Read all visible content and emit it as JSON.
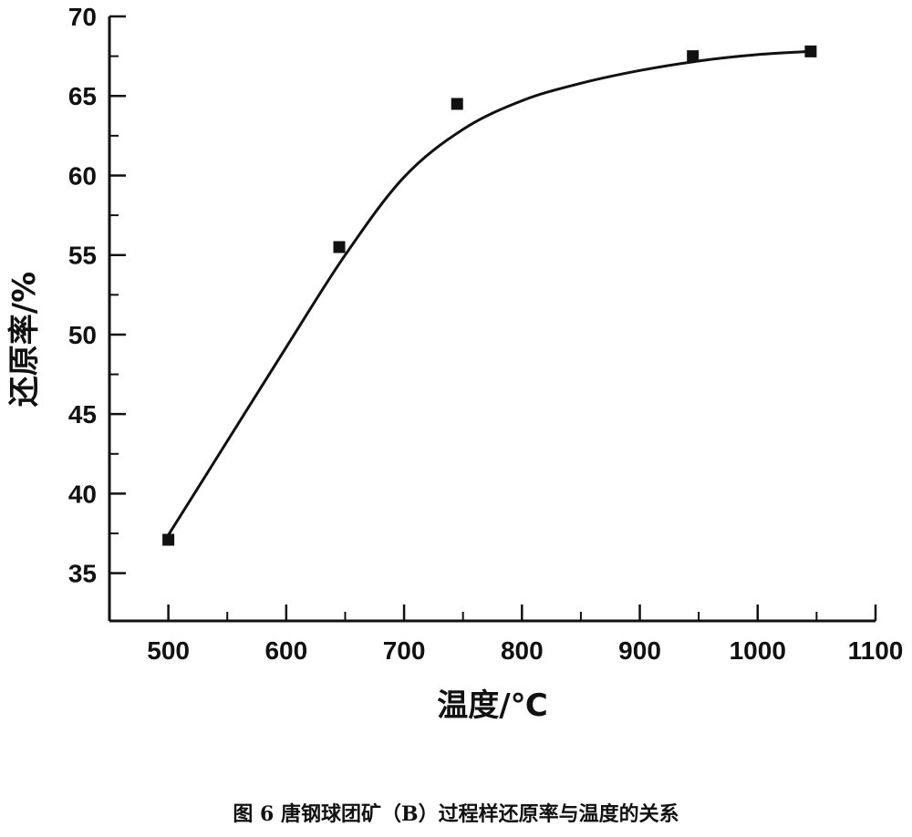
{
  "chart_data": {
    "type": "scatter",
    "xlabel": "温度/℃",
    "ylabel": "还原率/%",
    "caption": "图 6 唐钢球团矿（B）过程样还原率与温度的关系",
    "xlim": [
      450,
      1100
    ],
    "ylim": [
      32,
      70
    ],
    "xticks": [
      500,
      600,
      700,
      800,
      900,
      1000,
      1100
    ],
    "yticks": [
      35,
      40,
      45,
      50,
      55,
      60,
      65,
      70
    ],
    "series": [
      {
        "points": [
          {
            "x": 500,
            "y": 37.1
          },
          {
            "x": 645,
            "y": 55.5
          },
          {
            "x": 745,
            "y": 64.5
          },
          {
            "x": 945,
            "y": 67.5
          },
          {
            "x": 1045,
            "y": 67.8
          }
        ]
      }
    ],
    "fit_curve": [
      {
        "x": 500,
        "y": 37.4
      },
      {
        "x": 550,
        "y": 43.3
      },
      {
        "x": 600,
        "y": 49.2
      },
      {
        "x": 650,
        "y": 55.0
      },
      {
        "x": 700,
        "y": 59.9
      },
      {
        "x": 750,
        "y": 62.9
      },
      {
        "x": 800,
        "y": 64.7
      },
      {
        "x": 850,
        "y": 65.8
      },
      {
        "x": 900,
        "y": 66.6
      },
      {
        "x": 950,
        "y": 67.2
      },
      {
        "x": 1000,
        "y": 67.6
      },
      {
        "x": 1045,
        "y": 67.8
      }
    ],
    "grid": false,
    "marker": "filled-square",
    "colors": {
      "ink": "#111111"
    }
  }
}
